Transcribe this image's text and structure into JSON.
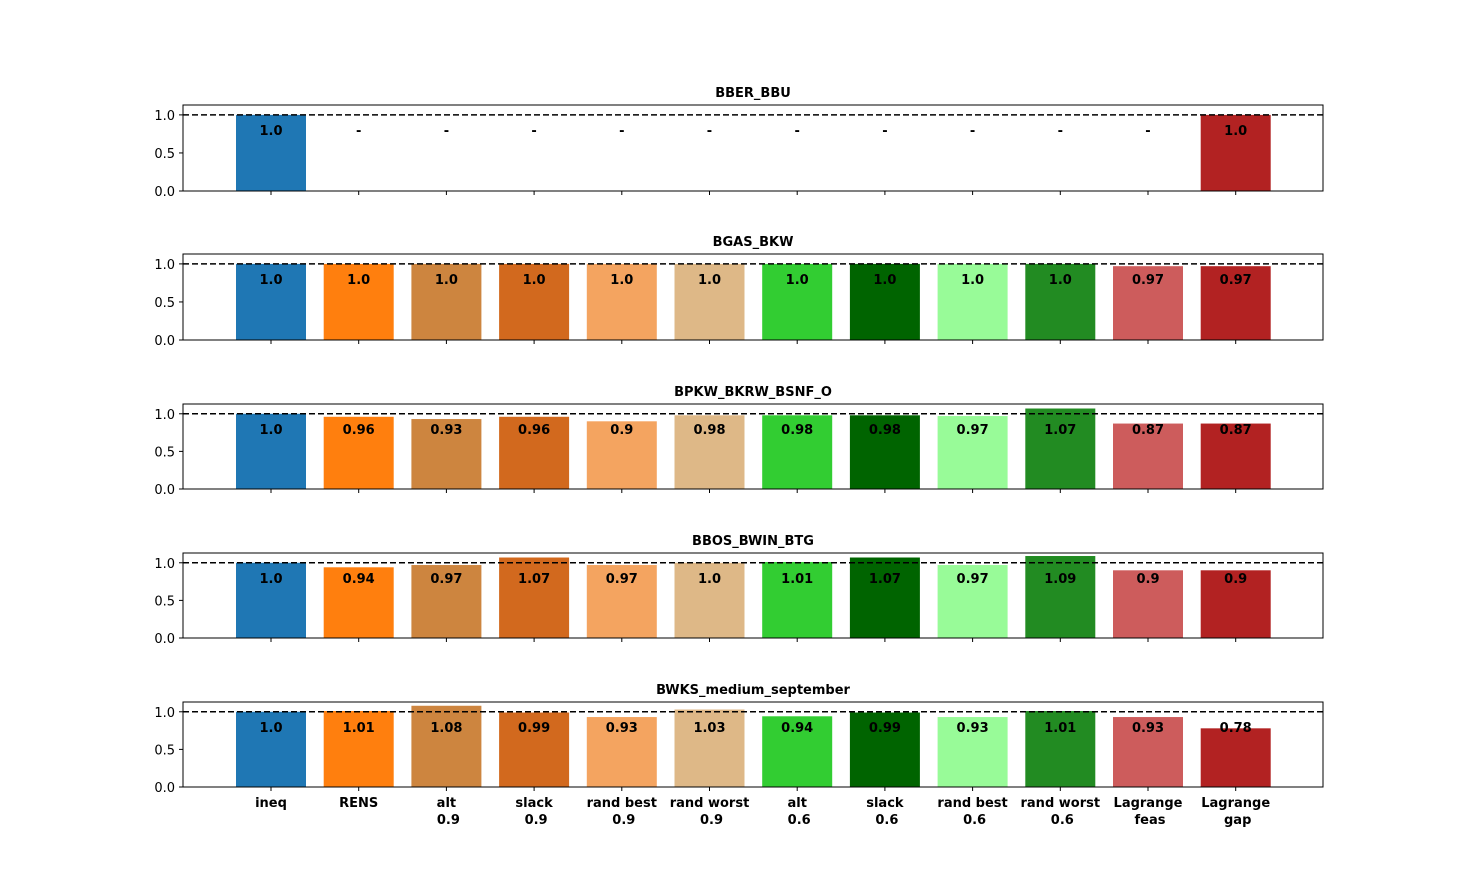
{
  "chart_data": {
    "type": "bar",
    "categories": [
      [
        "ineq"
      ],
      [
        "RENS"
      ],
      [
        "alt",
        "0.9"
      ],
      [
        "slack",
        "0.9"
      ],
      [
        "rand best",
        "0.9"
      ],
      [
        "rand worst",
        "0.9"
      ],
      [
        "alt",
        "0.6"
      ],
      [
        "slack",
        "0.6"
      ],
      [
        "rand best",
        "0.6"
      ],
      [
        "rand worst",
        "0.6"
      ],
      [
        "Lagrange",
        "feas"
      ],
      [
        "Lagrange",
        "gap"
      ]
    ],
    "colors": [
      "#1f77b4",
      "#ff7f0e",
      "#cd853f",
      "#d2691e",
      "#f4a460",
      "#deb887",
      "#32cd32",
      "#006400",
      "#98fb98",
      "#228b22",
      "#cd5c5c",
      "#b22222"
    ],
    "reference_line": 1.0,
    "ylim": [
      0,
      1.13
    ],
    "yticks": [
      "0.0",
      "0.5",
      "1.0"
    ],
    "panels": [
      {
        "title": "BBER_BBU",
        "values": [
          1.0,
          null,
          null,
          null,
          null,
          null,
          null,
          null,
          null,
          null,
          null,
          1.0
        ],
        "labels": [
          "1.0",
          "-",
          "-",
          "-",
          "-",
          "-",
          "-",
          "-",
          "-",
          "-",
          "-",
          "1.0"
        ]
      },
      {
        "title": "BGAS_BKW",
        "values": [
          1.0,
          1.0,
          1.0,
          1.0,
          1.0,
          1.0,
          1.0,
          1.0,
          1.0,
          1.0,
          0.97,
          0.97
        ],
        "labels": [
          "1.0",
          "1.0",
          "1.0",
          "1.0",
          "1.0",
          "1.0",
          "1.0",
          "1.0",
          "1.0",
          "1.0",
          "0.97",
          "0.97"
        ]
      },
      {
        "title": "BPKW_BKRW_BSNF_O",
        "values": [
          1.0,
          0.96,
          0.93,
          0.96,
          0.9,
          0.98,
          0.98,
          0.98,
          0.97,
          1.07,
          0.87,
          0.87
        ],
        "labels": [
          "1.0",
          "0.96",
          "0.93",
          "0.96",
          "0.9",
          "0.98",
          "0.98",
          "0.98",
          "0.97",
          "1.07",
          "0.87",
          "0.87"
        ]
      },
      {
        "title": "BBOS_BWIN_BTG",
        "values": [
          1.0,
          0.94,
          0.97,
          1.07,
          0.97,
          1.0,
          1.01,
          1.07,
          0.97,
          1.09,
          0.9,
          0.9
        ],
        "labels": [
          "1.0",
          "0.94",
          "0.97",
          "1.07",
          "0.97",
          "1.0",
          "1.01",
          "1.07",
          "0.97",
          "1.09",
          "0.9",
          "0.9"
        ]
      },
      {
        "title": "BWKS_medium_september",
        "values": [
          1.0,
          1.01,
          1.08,
          0.99,
          0.93,
          1.03,
          0.94,
          0.99,
          0.93,
          1.01,
          0.93,
          0.78
        ],
        "labels": [
          "1.0",
          "1.01",
          "1.08",
          "0.99",
          "0.93",
          "1.03",
          "0.94",
          "0.99",
          "0.93",
          "1.01",
          "0.93",
          "0.78"
        ]
      }
    ]
  }
}
